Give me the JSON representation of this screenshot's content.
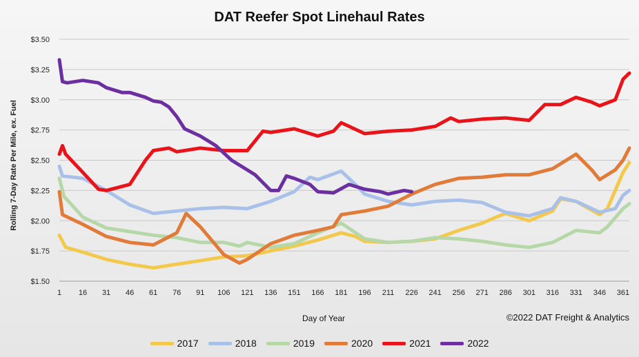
{
  "chart_data": {
    "type": "line",
    "title": "DAT Reefer Spot Linehaul Rates",
    "xlabel": "Day of Year",
    "ylabel": "Rolling 7-Day Rate Per Mile, ex. Fuel",
    "credit": "©2022 DAT Freight & Analytics",
    "xlim": [
      1,
      365
    ],
    "ylim": [
      1.5,
      3.5
    ],
    "x_ticks": [
      1,
      16,
      31,
      46,
      61,
      76,
      91,
      106,
      121,
      136,
      151,
      166,
      181,
      196,
      211,
      226,
      241,
      256,
      271,
      286,
      301,
      316,
      331,
      346,
      361
    ],
    "y_ticks": [
      {
        "value": 1.5,
        "label": "$1.50"
      },
      {
        "value": 1.75,
        "label": "$1.75"
      },
      {
        "value": 2.0,
        "label": "$2.00"
      },
      {
        "value": 2.25,
        "label": "$2.25"
      },
      {
        "value": 2.5,
        "label": "$2.50"
      },
      {
        "value": 2.75,
        "label": "$2.75"
      },
      {
        "value": 3.0,
        "label": "$3.00"
      },
      {
        "value": 3.25,
        "label": "$3.25"
      },
      {
        "value": 3.5,
        "label": "$3.50"
      }
    ],
    "legend_position": "bottom",
    "series": [
      {
        "name": "2017",
        "color": "#f2c94c",
        "points": [
          [
            1,
            1.88
          ],
          [
            5,
            1.78
          ],
          [
            16,
            1.74
          ],
          [
            31,
            1.68
          ],
          [
            46,
            1.64
          ],
          [
            61,
            1.61
          ],
          [
            76,
            1.64
          ],
          [
            91,
            1.67
          ],
          [
            106,
            1.7
          ],
          [
            121,
            1.71
          ],
          [
            136,
            1.75
          ],
          [
            151,
            1.79
          ],
          [
            166,
            1.84
          ],
          [
            181,
            1.9
          ],
          [
            190,
            1.87
          ],
          [
            196,
            1.83
          ],
          [
            211,
            1.82
          ],
          [
            226,
            1.83
          ],
          [
            241,
            1.85
          ],
          [
            256,
            1.92
          ],
          [
            271,
            1.98
          ],
          [
            280,
            2.03
          ],
          [
            286,
            2.06
          ],
          [
            301,
            2.0
          ],
          [
            316,
            2.08
          ],
          [
            321,
            2.18
          ],
          [
            331,
            2.16
          ],
          [
            346,
            2.05
          ],
          [
            351,
            2.1
          ],
          [
            361,
            2.4
          ],
          [
            365,
            2.48
          ]
        ]
      },
      {
        "name": "2018",
        "color": "#a9c1e8",
        "points": [
          [
            1,
            2.45
          ],
          [
            3,
            2.37
          ],
          [
            16,
            2.35
          ],
          [
            31,
            2.25
          ],
          [
            46,
            2.13
          ],
          [
            61,
            2.06
          ],
          [
            76,
            2.08
          ],
          [
            91,
            2.1
          ],
          [
            106,
            2.11
          ],
          [
            121,
            2.1
          ],
          [
            136,
            2.16
          ],
          [
            151,
            2.24
          ],
          [
            161,
            2.36
          ],
          [
            166,
            2.34
          ],
          [
            181,
            2.41
          ],
          [
            190,
            2.3
          ],
          [
            196,
            2.22
          ],
          [
            211,
            2.16
          ],
          [
            226,
            2.13
          ],
          [
            241,
            2.16
          ],
          [
            256,
            2.17
          ],
          [
            271,
            2.15
          ],
          [
            286,
            2.07
          ],
          [
            301,
            2.04
          ],
          [
            316,
            2.1
          ],
          [
            321,
            2.19
          ],
          [
            331,
            2.16
          ],
          [
            346,
            2.07
          ],
          [
            356,
            2.1
          ],
          [
            361,
            2.21
          ],
          [
            365,
            2.25
          ]
        ]
      },
      {
        "name": "2019",
        "color": "#b6d7a8",
        "points": [
          [
            1,
            2.35
          ],
          [
            4,
            2.2
          ],
          [
            16,
            2.03
          ],
          [
            31,
            1.94
          ],
          [
            46,
            1.91
          ],
          [
            61,
            1.88
          ],
          [
            76,
            1.86
          ],
          [
            91,
            1.82
          ],
          [
            106,
            1.82
          ],
          [
            116,
            1.79
          ],
          [
            121,
            1.82
          ],
          [
            136,
            1.78
          ],
          [
            151,
            1.81
          ],
          [
            166,
            1.9
          ],
          [
            181,
            1.98
          ],
          [
            196,
            1.85
          ],
          [
            211,
            1.82
          ],
          [
            226,
            1.83
          ],
          [
            241,
            1.86
          ],
          [
            256,
            1.85
          ],
          [
            271,
            1.83
          ],
          [
            286,
            1.8
          ],
          [
            301,
            1.78
          ],
          [
            316,
            1.82
          ],
          [
            331,
            1.92
          ],
          [
            346,
            1.9
          ],
          [
            351,
            1.95
          ],
          [
            361,
            2.1
          ],
          [
            365,
            2.14
          ]
        ]
      },
      {
        "name": "2020",
        "color": "#e07b39",
        "points": [
          [
            1,
            2.24
          ],
          [
            3,
            2.05
          ],
          [
            16,
            1.97
          ],
          [
            31,
            1.87
          ],
          [
            46,
            1.82
          ],
          [
            61,
            1.8
          ],
          [
            76,
            1.9
          ],
          [
            82,
            2.06
          ],
          [
            91,
            1.95
          ],
          [
            106,
            1.72
          ],
          [
            116,
            1.65
          ],
          [
            121,
            1.68
          ],
          [
            136,
            1.81
          ],
          [
            151,
            1.88
          ],
          [
            166,
            1.92
          ],
          [
            176,
            1.95
          ],
          [
            181,
            2.05
          ],
          [
            196,
            2.08
          ],
          [
            211,
            2.12
          ],
          [
            226,
            2.22
          ],
          [
            241,
            2.3
          ],
          [
            256,
            2.35
          ],
          [
            271,
            2.36
          ],
          [
            286,
            2.38
          ],
          [
            301,
            2.38
          ],
          [
            316,
            2.43
          ],
          [
            331,
            2.55
          ],
          [
            341,
            2.42
          ],
          [
            346,
            2.34
          ],
          [
            356,
            2.42
          ],
          [
            361,
            2.5
          ],
          [
            365,
            2.6
          ]
        ]
      },
      {
        "name": "2021",
        "color": "#e8141a",
        "points": [
          [
            1,
            2.55
          ],
          [
            3,
            2.62
          ],
          [
            5,
            2.55
          ],
          [
            16,
            2.4
          ],
          [
            26,
            2.26
          ],
          [
            31,
            2.25
          ],
          [
            46,
            2.3
          ],
          [
            56,
            2.5
          ],
          [
            61,
            2.58
          ],
          [
            71,
            2.6
          ],
          [
            76,
            2.57
          ],
          [
            91,
            2.6
          ],
          [
            106,
            2.58
          ],
          [
            121,
            2.58
          ],
          [
            131,
            2.74
          ],
          [
            136,
            2.73
          ],
          [
            151,
            2.76
          ],
          [
            166,
            2.7
          ],
          [
            176,
            2.74
          ],
          [
            181,
            2.81
          ],
          [
            191,
            2.75
          ],
          [
            196,
            2.72
          ],
          [
            211,
            2.74
          ],
          [
            226,
            2.75
          ],
          [
            241,
            2.78
          ],
          [
            251,
            2.85
          ],
          [
            256,
            2.82
          ],
          [
            271,
            2.84
          ],
          [
            286,
            2.85
          ],
          [
            301,
            2.83
          ],
          [
            311,
            2.96
          ],
          [
            321,
            2.96
          ],
          [
            331,
            3.02
          ],
          [
            341,
            2.98
          ],
          [
            346,
            2.95
          ],
          [
            356,
            3.0
          ],
          [
            361,
            3.17
          ],
          [
            365,
            3.22
          ]
        ]
      },
      {
        "name": "2022",
        "color": "#6b2fa0",
        "points": [
          [
            1,
            3.33
          ],
          [
            3,
            3.15
          ],
          [
            6,
            3.14
          ],
          [
            16,
            3.16
          ],
          [
            26,
            3.14
          ],
          [
            31,
            3.1
          ],
          [
            41,
            3.06
          ],
          [
            46,
            3.06
          ],
          [
            56,
            3.02
          ],
          [
            61,
            2.99
          ],
          [
            66,
            2.98
          ],
          [
            71,
            2.94
          ],
          [
            76,
            2.86
          ],
          [
            81,
            2.76
          ],
          [
            91,
            2.7
          ],
          [
            101,
            2.62
          ],
          [
            111,
            2.5
          ],
          [
            121,
            2.42
          ],
          [
            126,
            2.38
          ],
          [
            136,
            2.25
          ],
          [
            141,
            2.25
          ],
          [
            146,
            2.37
          ],
          [
            151,
            2.35
          ],
          [
            161,
            2.3
          ],
          [
            166,
            2.24
          ],
          [
            176,
            2.23
          ],
          [
            186,
            2.3
          ],
          [
            196,
            2.26
          ],
          [
            206,
            2.24
          ],
          [
            211,
            2.22
          ],
          [
            221,
            2.25
          ],
          [
            226,
            2.24
          ]
        ]
      }
    ]
  }
}
